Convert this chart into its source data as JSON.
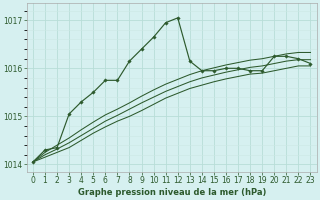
{
  "xlabel": "Graphe pression niveau de la mer (hPa)",
  "bg_color": "#d6f0f0",
  "grid_color_major": "#b8ddd8",
  "grid_color_minor": "#cce8e4",
  "line_color": "#2d5a2d",
  "ylim": [
    1013.85,
    1017.35
  ],
  "xlim": [
    -0.5,
    23.5
  ],
  "yticks": [
    1014,
    1015,
    1016,
    1017
  ],
  "xticks": [
    0,
    1,
    2,
    3,
    4,
    5,
    6,
    7,
    8,
    9,
    10,
    11,
    12,
    13,
    14,
    15,
    16,
    17,
    18,
    19,
    20,
    21,
    22,
    23
  ],
  "jagged": [
    1014.05,
    1014.3,
    1014.35,
    1015.05,
    1015.3,
    1015.5,
    1015.75,
    1015.75,
    1016.15,
    1016.4,
    1016.65,
    1016.95,
    1017.05,
    1016.15,
    1015.95,
    1015.95,
    1016.0,
    1016.0,
    1015.95,
    1015.95,
    1016.25,
    1016.25,
    1016.2,
    1016.1
  ],
  "smooth1": [
    1014.05,
    1014.15,
    1014.25,
    1014.35,
    1014.5,
    1014.65,
    1014.78,
    1014.9,
    1015.0,
    1015.12,
    1015.25,
    1015.38,
    1015.48,
    1015.58,
    1015.65,
    1015.72,
    1015.78,
    1015.83,
    1015.88,
    1015.9,
    1015.95,
    1016.0,
    1016.05,
    1016.05
  ],
  "smooth2": [
    1014.05,
    1014.2,
    1014.32,
    1014.45,
    1014.6,
    1014.75,
    1014.9,
    1015.02,
    1015.15,
    1015.28,
    1015.4,
    1015.52,
    1015.62,
    1015.72,
    1015.8,
    1015.86,
    1015.92,
    1015.97,
    1016.02,
    1016.05,
    1016.1,
    1016.15,
    1016.18,
    1016.18
  ],
  "smooth3": [
    1014.05,
    1014.25,
    1014.4,
    1014.55,
    1014.72,
    1014.88,
    1015.03,
    1015.15,
    1015.28,
    1015.42,
    1015.55,
    1015.67,
    1015.77,
    1015.87,
    1015.95,
    1016.01,
    1016.07,
    1016.12,
    1016.17,
    1016.2,
    1016.25,
    1016.3,
    1016.33,
    1016.33
  ]
}
